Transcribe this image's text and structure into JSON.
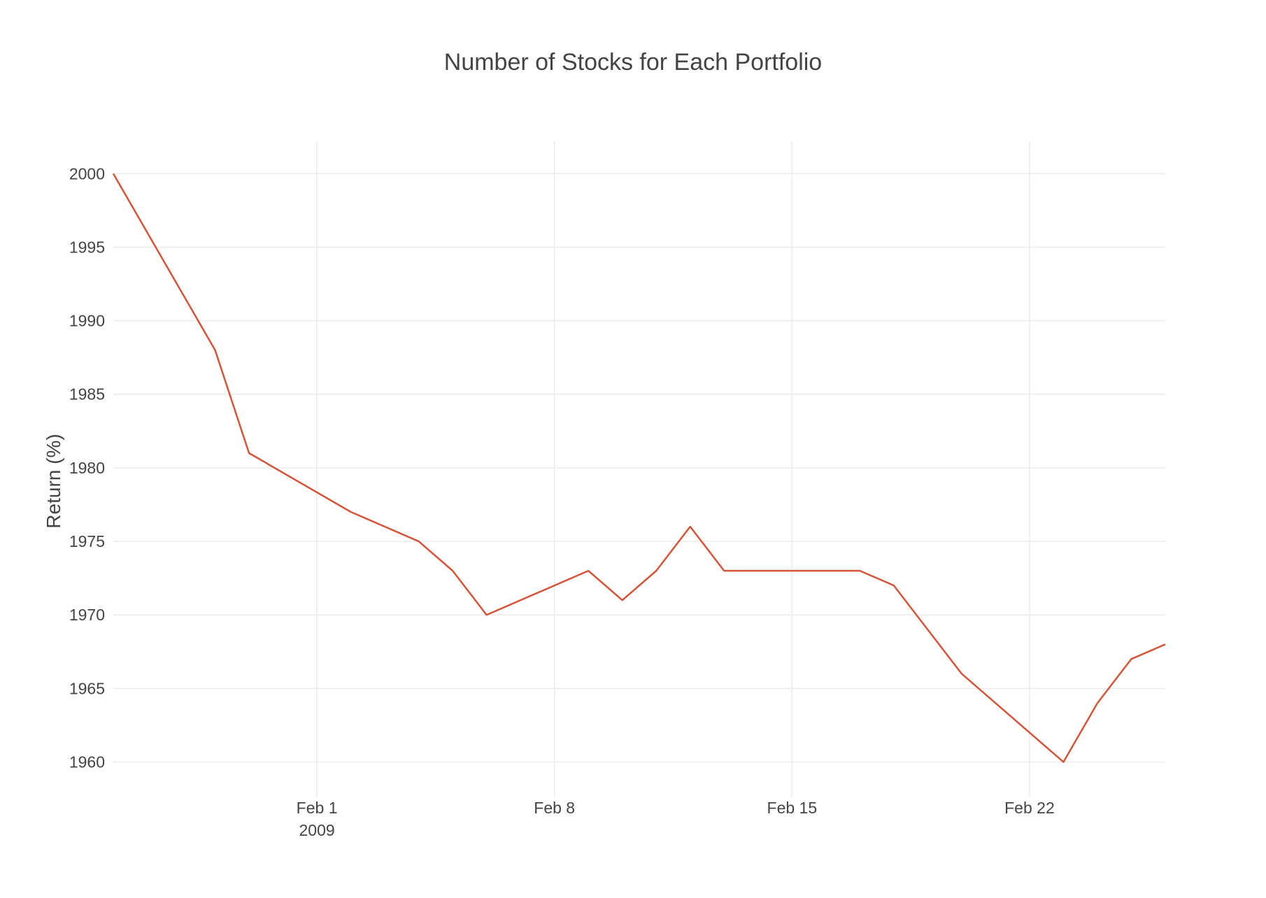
{
  "chart_data": {
    "type": "line",
    "title": "Number of Stocks for Each Portfolio",
    "xlabel": "",
    "ylabel": "Return (%)",
    "x_axis": {
      "kind": "date",
      "range": [
        "2009-01-26",
        "2009-02-26"
      ],
      "ticks": [
        {
          "value": "2009-02-01",
          "label": "Feb 1",
          "sublabel": "2009"
        },
        {
          "value": "2009-02-08",
          "label": "Feb 8",
          "sublabel": ""
        },
        {
          "value": "2009-02-15",
          "label": "Feb 15",
          "sublabel": ""
        },
        {
          "value": "2009-02-22",
          "label": "Feb 22",
          "sublabel": ""
        }
      ]
    },
    "y_axis": {
      "range": [
        1957.6,
        2002.2
      ],
      "ticks": [
        1960,
        1965,
        1970,
        1975,
        1980,
        1985,
        1990,
        1995,
        2000
      ]
    },
    "grid": true,
    "legend": "none",
    "series": [
      {
        "color": "#d35439",
        "x": [
          "2009-01-26",
          "2009-01-29",
          "2009-01-30",
          "2009-02-02",
          "2009-02-04",
          "2009-02-05",
          "2009-02-06",
          "2009-02-09",
          "2009-02-10",
          "2009-02-11",
          "2009-02-12",
          "2009-02-13",
          "2009-02-17",
          "2009-02-18",
          "2009-02-20",
          "2009-02-23",
          "2009-02-24",
          "2009-02-25",
          "2009-02-26"
        ],
        "y": [
          2000,
          1988,
          1981,
          1977,
          1975,
          1973,
          1970,
          1973,
          1971,
          1973,
          1976,
          1973,
          1973,
          1972,
          1966,
          1960,
          1964,
          1967,
          1968
        ]
      }
    ]
  }
}
